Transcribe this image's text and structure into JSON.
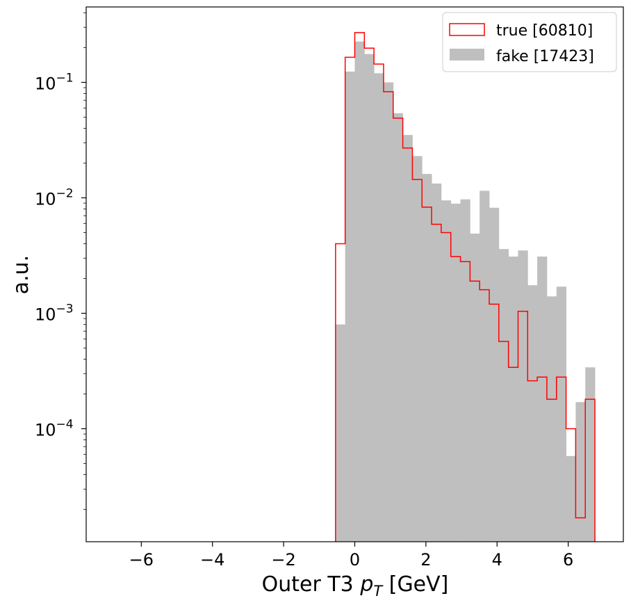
{
  "chart_data": {
    "type": "histogram",
    "xlabel": "Outer T3",
    "xlabel_math_p": "p",
    "xlabel_math_sub": "T",
    "xlabel_unit": "[GeV]",
    "ylabel": "a.u.",
    "yscale": "log",
    "xlim": [
      -7.55,
      7.55
    ],
    "ylim": [
      1.05e-05,
      0.45
    ],
    "x_ticks": [
      -6,
      -4,
      -2,
      0,
      2,
      4,
      6
    ],
    "x_tick_labels": [
      "−6",
      "−4",
      "−2",
      "0",
      "2",
      "4",
      "6"
    ],
    "y_ticks": [
      0.0001,
      0.001,
      0.01,
      0.1
    ],
    "y_tick_base": [
      "10",
      "10",
      "10",
      "10"
    ],
    "y_tick_exp": [
      "−4",
      "−3",
      "−2",
      "−1"
    ],
    "bin_edges": [
      -0.54,
      -0.27,
      0.0,
      0.27,
      0.54,
      0.81,
      1.08,
      1.35,
      1.62,
      1.89,
      2.16,
      2.43,
      2.7,
      2.97,
      3.24,
      3.51,
      3.78,
      4.05,
      4.32,
      4.59,
      4.86,
      5.13,
      5.4,
      5.67,
      5.94,
      6.21,
      6.48,
      6.75
    ],
    "series": [
      {
        "name": "true [60810]",
        "style": "step",
        "color": "#ff0000",
        "values": [
          0.004,
          0.165,
          0.27,
          0.198,
          0.144,
          0.083,
          0.049,
          0.027,
          0.0144,
          0.0083,
          0.0059,
          0.005,
          0.0031,
          0.0028,
          0.0019,
          0.0016,
          0.0012,
          0.00057,
          0.00034,
          0.00104,
          0.00026,
          0.00028,
          0.00018,
          0.00028,
          0.0001,
          1.69e-05,
          0.00018
        ]
      },
      {
        "name": "fake [17423]",
        "style": "filled",
        "color": "#bfbfbf",
        "values": [
          0.0008,
          0.124,
          0.226,
          0.176,
          0.12,
          0.1,
          0.054,
          0.035,
          0.023,
          0.0161,
          0.0133,
          0.0095,
          0.0089,
          0.0097,
          0.0049,
          0.0115,
          0.0082,
          0.0036,
          0.0031,
          0.0035,
          0.00175,
          0.0031,
          0.0014,
          0.0017,
          5.8e-05,
          0.00017,
          0.00034
        ]
      }
    ],
    "legend": "top-right",
    "grid": false
  }
}
